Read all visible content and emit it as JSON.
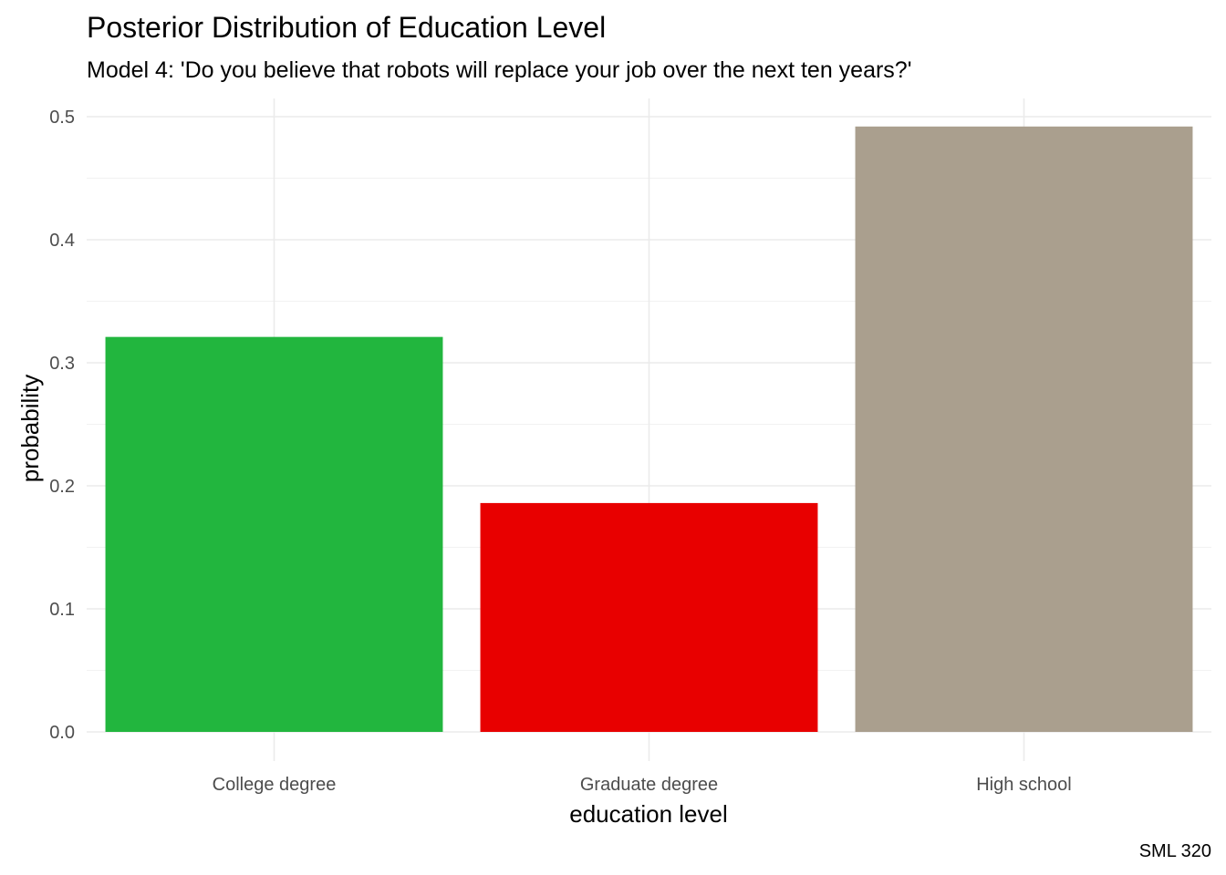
{
  "chart_data": {
    "type": "bar",
    "title": "Posterior Distribution of Education Level",
    "subtitle": "Model 4: 'Do you believe that robots will replace your job over the next ten years?'",
    "xlabel": "education level",
    "ylabel": "probability",
    "caption": "SML 320",
    "categories": [
      "College degree",
      "Graduate degree",
      "High school"
    ],
    "values": [
      0.321,
      0.186,
      0.492
    ],
    "colors": [
      "#22b63e",
      "#e80000",
      "#aa9f8e"
    ],
    "ylim": [
      0,
      0.5
    ],
    "yticks": [
      0.0,
      0.1,
      0.2,
      0.3,
      0.4,
      0.5
    ],
    "ytick_labels": [
      "0.0",
      "0.1",
      "0.2",
      "0.3",
      "0.4",
      "0.5"
    ],
    "grid": true,
    "legend": "none"
  }
}
